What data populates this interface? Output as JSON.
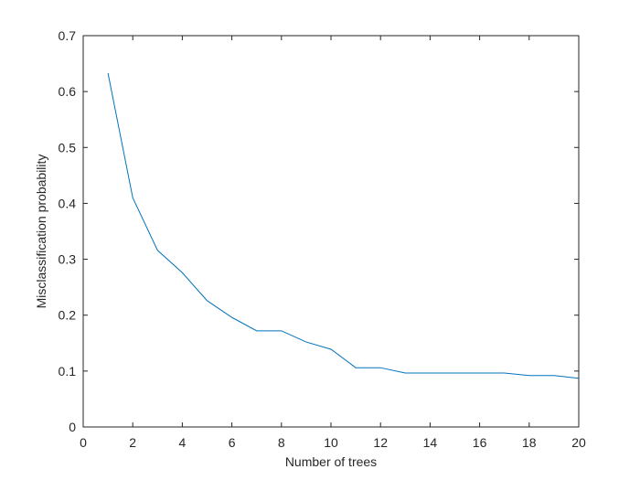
{
  "chart_data": {
    "type": "line",
    "x_label": "Number of trees",
    "y_label": "Misclassification probability",
    "x": [
      1,
      2,
      3,
      4,
      5,
      6,
      7,
      8,
      9,
      10,
      11,
      12,
      13,
      14,
      15,
      16,
      17,
      18,
      19,
      20
    ],
    "series": [
      {
        "color": "#0072BD",
        "values": [
          0.633,
          0.41,
          0.316,
          0.276,
          0.226,
          0.196,
          0.172,
          0.172,
          0.152,
          0.139,
          0.106,
          0.106,
          0.0965,
          0.0965,
          0.0965,
          0.0965,
          0.0965,
          0.092,
          0.092,
          0.087
        ]
      }
    ],
    "xlim": [
      0,
      20
    ],
    "xticks": [
      0,
      2,
      4,
      6,
      8,
      10,
      12,
      14,
      16,
      18,
      20
    ],
    "ylim": [
      0,
      0.7
    ],
    "yticks": [
      0,
      0.1,
      0.2,
      0.3,
      0.4,
      0.5,
      0.6,
      0.7
    ],
    "grid": false
  }
}
